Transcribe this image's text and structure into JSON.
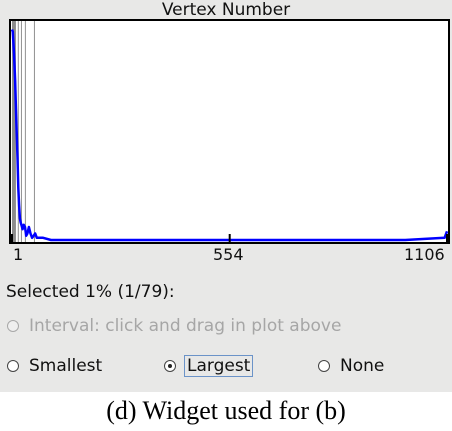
{
  "widget": {
    "title": "Vertex Number",
    "axis": {
      "min_label": "1",
      "mid_label": "554",
      "max_label": "1106"
    },
    "selected_label": "Selected 1% (1/79):",
    "options": {
      "interval": {
        "label": "Interval: click and drag in plot above",
        "enabled": false,
        "selected": false
      },
      "smallest": {
        "label": "Smallest",
        "selected": false
      },
      "largest": {
        "label": "Largest",
        "selected": true
      },
      "none": {
        "label": "None",
        "selected": false
      }
    }
  },
  "caption": "(d) Widget used for (b)",
  "colors": {
    "curve": "#0000ff",
    "panel_bg": "#e8e8e7",
    "selected_region": "#8c8c8c",
    "marker_lines": "#909090"
  },
  "chart_data": {
    "type": "line",
    "title": "Vertex Number",
    "xlabel": "",
    "ylabel": "",
    "xlim": [
      1,
      1106
    ],
    "x_ticks": [
      1,
      554,
      1106
    ],
    "y_ticks_shown": false,
    "ylim": [
      0,
      1
    ],
    "selected_range": [
      1,
      11
    ],
    "vertical_markers": [
      17,
      25,
      35,
      58
    ],
    "series": [
      {
        "x": [
          1,
          3,
          6,
          9,
          12,
          15,
          17,
          19,
          21,
          23,
          25,
          28,
          31,
          34,
          37,
          40,
          44,
          48,
          52,
          56,
          60,
          64,
          70,
          80,
          100,
          200,
          400,
          600,
          800,
          1000,
          1100,
          1106
        ],
        "y": [
          0.97,
          0.96,
          0.86,
          0.74,
          0.55,
          0.38,
          0.24,
          0.16,
          0.1,
          0.08,
          0.07,
          0.05,
          0.07,
          0.06,
          0.02,
          0.03,
          0.06,
          0.03,
          0.01,
          0.02,
          0.03,
          0.01,
          0.01,
          0.01,
          0.0,
          0.0,
          0.0,
          0.0,
          0.0,
          0.0,
          0.01,
          0.04
        ]
      }
    ]
  }
}
